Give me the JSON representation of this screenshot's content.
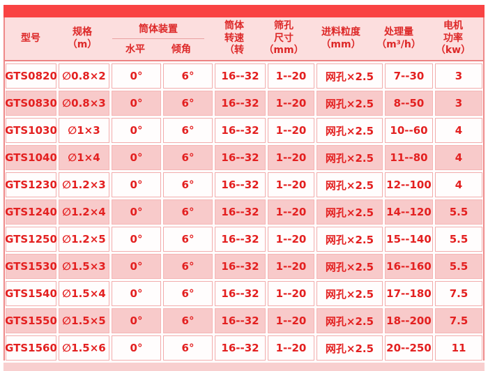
{
  "colors": {
    "top_bar": "#f94343",
    "header_bg": "#fcdede",
    "row_pink": "#f8caca",
    "row_white": "#fffdfd",
    "text_red": "#e32020",
    "cell_border": "#f2abab"
  },
  "chart_data": {
    "type": "table",
    "title": "",
    "header": {
      "model": "型号",
      "spec": "规格\n（m）",
      "drum_group": "筒体装置",
      "drum_sub": [
        "水平",
        "倾角"
      ],
      "speed": "筒体\n转速\n（转",
      "hole": "筛孔\n尺寸\n（mm）",
      "feed": "进料粒度\n（mm）",
      "capacity": "处理量\n（m³/h）",
      "power": "电机\n功率\n（kw）"
    },
    "rows": [
      [
        "GTS0820",
        "∅0.8×2",
        "0°",
        "6°",
        "16--32",
        "1--20",
        "网孔×2.5",
        "7--30",
        "3"
      ],
      [
        "GTS0830",
        "∅0.8×3",
        "0°",
        "6°",
        "16--32",
        "1--20",
        "网孔×2.5",
        "8--50",
        "3"
      ],
      [
        "GTS1030",
        "∅1×3",
        "0°",
        "6°",
        "16--32",
        "1--20",
        "网孔×2.5",
        "10--60",
        "4"
      ],
      [
        "GTS1040",
        "∅1×4",
        "0°",
        "6°",
        "16--32",
        "1--20",
        "网孔×2.5",
        "11--80",
        "4"
      ],
      [
        "GTS1230",
        "∅1.2×3",
        "0°",
        "6°",
        "16--32",
        "1--20",
        "网孔×2.5",
        "12--100",
        "4"
      ],
      [
        "GTS1240",
        "∅1.2×4",
        "0°",
        "6°",
        "16--32",
        "1--20",
        "网孔×2.5",
        "14--120",
        "5.5"
      ],
      [
        "GTS1250",
        "∅1.2×5",
        "0°",
        "6°",
        "16--32",
        "1--20",
        "网孔×2.5",
        "15--140",
        "5.5"
      ],
      [
        "GTS1530",
        "∅1.5×3",
        "0°",
        "6°",
        "16--32",
        "1--20",
        "网孔×2.5",
        "16--160",
        "5.5"
      ],
      [
        "GTS1540",
        "∅1.5×4",
        "0°",
        "6°",
        "16--32",
        "1--20",
        "网孔×2.5",
        "17--180",
        "7.5"
      ],
      [
        "GTS1550",
        "∅1.5×5",
        "0°",
        "6°",
        "16--32",
        "1--20",
        "网孔×2.5",
        "18--200",
        "7.5"
      ],
      [
        "GTS1560",
        "∅1.5×6",
        "0°",
        "6°",
        "16--32",
        "1--20",
        "网孔×2.5",
        "20--250",
        "11"
      ]
    ]
  }
}
